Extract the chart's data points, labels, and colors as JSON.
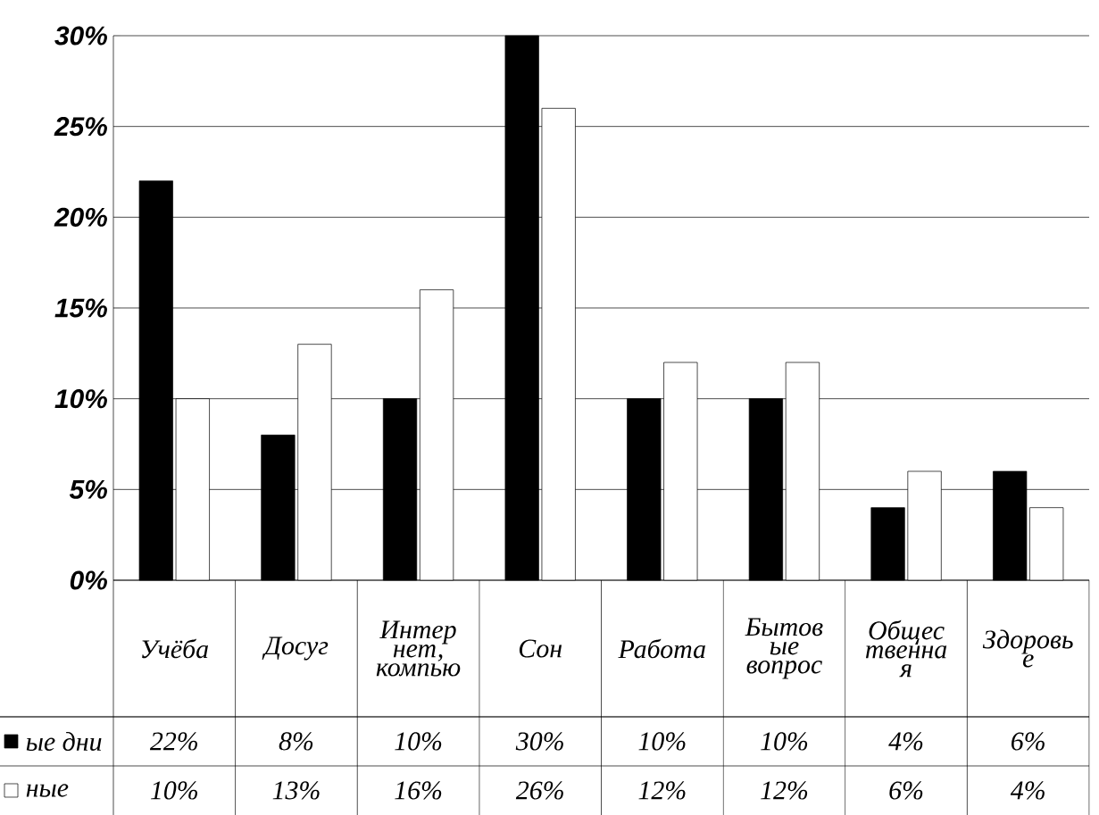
{
  "chart_data": {
    "type": "bar",
    "categories": [
      "Учёба",
      "Досуг",
      "Интер нет, компью",
      "Сон",
      "Работа",
      "Бытов ые вопрос",
      "Общес твенна я",
      "Здоровь е"
    ],
    "legend": "bottom left",
    "series": [
      {
        "name": "ые дни",
        "color": "#000000",
        "values": [
          22,
          8,
          10,
          30,
          10,
          10,
          4,
          6
        ],
        "value_labels": [
          "22%",
          "8%",
          "10%",
          "30%",
          "10%",
          "10%",
          "4%",
          "6%"
        ]
      },
      {
        "name": "ные",
        "color": "#ffffff",
        "values": [
          10,
          13,
          16,
          26,
          12,
          12,
          6,
          4
        ],
        "value_labels": [
          "10%",
          "13%",
          "16%",
          "26%",
          "12%",
          "12%",
          "6%",
          "4%"
        ]
      }
    ],
    "ylim": [
      0,
      30
    ],
    "yticks": [
      {
        "value": 0,
        "label": "0%"
      },
      {
        "value": 5,
        "label": "5%"
      },
      {
        "value": 10,
        "label": "10%"
      },
      {
        "value": 15,
        "label": "15%"
      },
      {
        "value": 20,
        "label": "20%"
      },
      {
        "value": 25,
        "label": "25%"
      },
      {
        "value": 30,
        "label": "30%"
      }
    ],
    "grid": "y"
  }
}
